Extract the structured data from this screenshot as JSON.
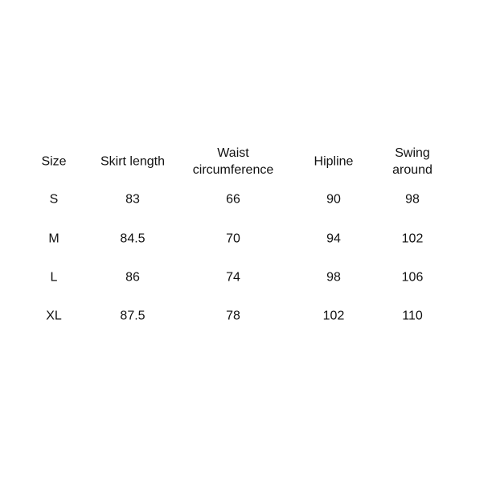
{
  "headers": [
    "Size",
    "Skirt length",
    "Waist\ncircumference",
    "Hipline",
    "Swing\naround"
  ],
  "rows": [
    [
      "S",
      "83",
      "66",
      "90",
      "98"
    ],
    [
      "M",
      "84.5",
      "70",
      "94",
      "102"
    ],
    [
      "L",
      "86",
      "74",
      "98",
      "106"
    ],
    [
      "XL",
      "87.5",
      "78",
      "102",
      "110"
    ]
  ]
}
